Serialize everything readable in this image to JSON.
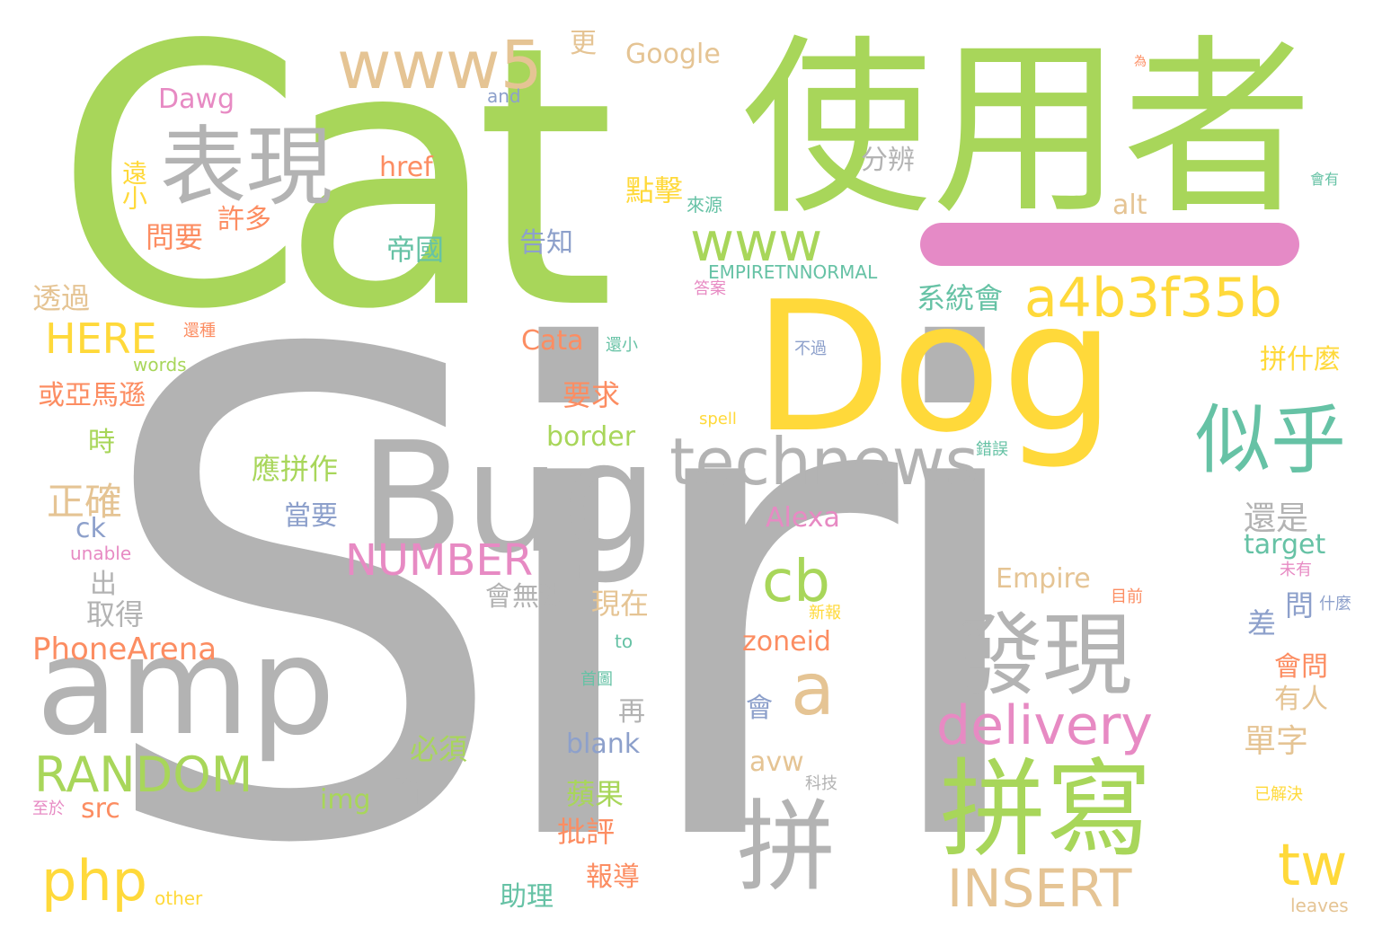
{
  "colors": {
    "background": "#ffffff",
    "green": "#a8d65a",
    "gray": "#b3b3b3",
    "yellow": "#ffd93a",
    "tan": "#e5c494",
    "pink": "#e78ac3",
    "orange": "#fc8d62",
    "teal": "#66c2a5",
    "blue": "#8da0cb",
    "pill": "#e58ac6"
  },
  "words": [
    "Siri",
    "Cat",
    "使用者",
    "Dog",
    "Bug",
    "amp",
    "拼寫",
    "發現",
    "拼",
    "表現",
    "www5",
    "www",
    "technews",
    "似乎",
    "a4b3f35b",
    "a",
    "cb",
    "delivery",
    "RANDOM",
    "INSERT",
    "php",
    "tw",
    "NUMBER",
    "HERE",
    "n",
    "Google",
    "Dawg",
    "and",
    "更",
    "href",
    "點擊",
    "分辨",
    "alt",
    "會有",
    "為",
    "許多",
    "問要",
    "遠小",
    "帝國",
    "告知",
    "來源",
    "EMPIRETNNORMAL",
    "系統會",
    "答案",
    "透過",
    "還種",
    "還小",
    "不過",
    "words",
    "Cata",
    "拼什麼",
    "或亞馬遜",
    "要求",
    "spell",
    "時",
    "border",
    "錯誤",
    "正確",
    "應拼作",
    "Alexa",
    "還是",
    "當要",
    "ck",
    "unable",
    "target",
    "未有",
    "出",
    "取得",
    "會無法",
    "現在",
    "Empire",
    "目前",
    "問",
    "什麼",
    "PhoneArena",
    "新報",
    "差",
    "zoneid",
    "to",
    "首圖",
    "會問",
    "會",
    "再",
    "有人",
    "單字",
    "必須",
    "blank",
    "avw",
    "科技",
    "蘋果",
    "img",
    "src",
    "至於",
    "已解決",
    "批評",
    "報導",
    "助理",
    "other",
    "leaves"
  ]
}
